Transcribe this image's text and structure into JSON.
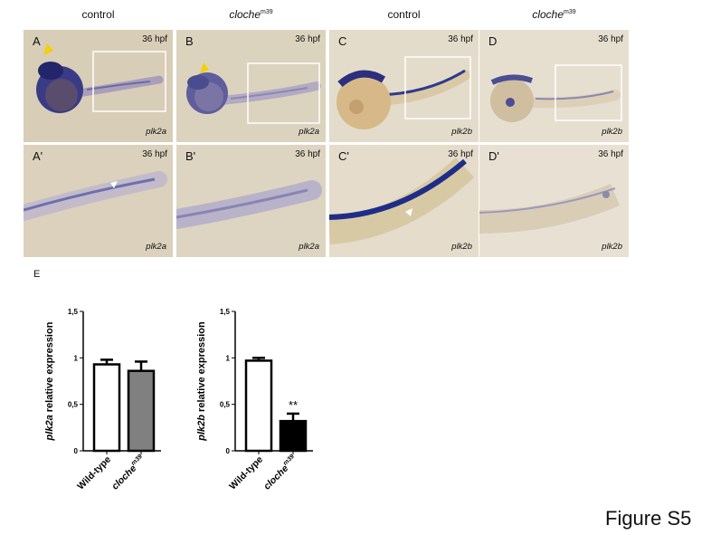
{
  "columns": [
    {
      "label": "control",
      "italic": false,
      "sup": ""
    },
    {
      "label": "cloche",
      "italic": true,
      "sup": "m39"
    },
    {
      "label": "control",
      "italic": false,
      "sup": ""
    },
    {
      "label": "cloche",
      "italic": true,
      "sup": "m39"
    }
  ],
  "panels": [
    {
      "label": "A",
      "stage": "36 hpf",
      "gene": "plk2a"
    },
    {
      "label": "B",
      "stage": "36 hpf",
      "gene": "plk2a"
    },
    {
      "label": "C",
      "stage": "36 hpf",
      "gene": "plk2b"
    },
    {
      "label": "D",
      "stage": "36 hpf",
      "gene": "plk2b"
    },
    {
      "label": "A'",
      "stage": "36 hpf",
      "gene": "plk2a"
    },
    {
      "label": "B'",
      "stage": "36 hpf",
      "gene": "plk2a"
    },
    {
      "label": "C'",
      "stage": "36 hpf",
      "gene": "plk2b"
    },
    {
      "label": "D'",
      "stage": "36 hpf",
      "gene": "plk2b"
    }
  ],
  "section_e_label": "E",
  "figure_label": "Figure S5",
  "chart_data": [
    {
      "type": "bar",
      "ylabel_gene": "plk2a",
      "ylabel_rest": " relative expression",
      "ylim": [
        0,
        1.5
      ],
      "yticks": [
        "0",
        "0,5",
        "1",
        "1,5"
      ],
      "categories": [
        "Wild-type",
        "cloche"
      ],
      "category_sup": [
        "",
        "m39"
      ],
      "values": [
        0.93,
        0.86
      ],
      "errors": [
        0.05,
        0.1
      ],
      "bar_colors": [
        "#ffffff",
        "#808080"
      ],
      "annotations": [
        "",
        ""
      ]
    },
    {
      "type": "bar",
      "ylabel_gene": "plk2b",
      "ylabel_rest": " relative expression",
      "ylim": [
        0,
        1.5
      ],
      "yticks": [
        "0",
        "0,5",
        "1",
        "1,5"
      ],
      "categories": [
        "Wild-type",
        "cloche"
      ],
      "category_sup": [
        "",
        "m39"
      ],
      "values": [
        0.97,
        0.32
      ],
      "errors": [
        0.03,
        0.08
      ],
      "bar_colors": [
        "#ffffff",
        "#000000"
      ],
      "annotations": [
        "",
        "**"
      ]
    }
  ]
}
